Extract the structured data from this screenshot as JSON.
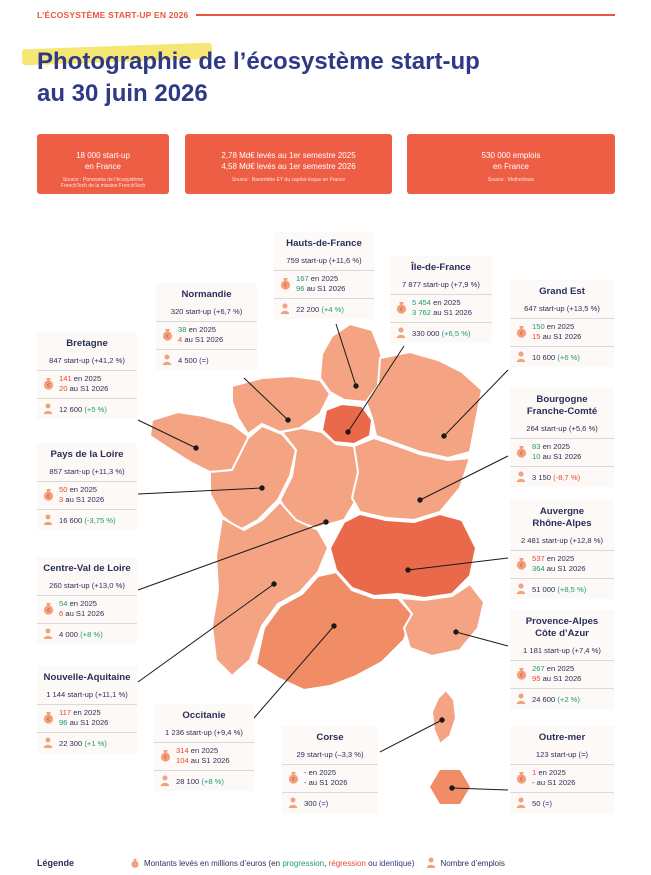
{
  "header": {
    "label": "L’ÉCOSYSTÈME START-UP EN 2026"
  },
  "title": {
    "highlighted": "Photographie",
    "rest": " de l’écosystème start-up",
    "line2": "au 30 juin 2026"
  },
  "kpis": [
    {
      "main": "18 000 start-up\nen France",
      "source": "Source : Panorama de l’écosystème\nFrenchTech de la mission FrenchTech"
    },
    {
      "main": "2,78 Md€ levés au 1er semestre 2025\n4,58 Md€ levés au 1er semestre 2026",
      "source": "Source : Baromètre EY du capital-risque en France"
    },
    {
      "main": "530 000 emplois\nen France",
      "source": "Source : Motherbase"
    }
  ],
  "regions": [
    {
      "id": "hauts-de-france",
      "name": "Hauts-de-France",
      "summary": "759 start-up (+11,6 %)",
      "v2025": "167",
      "v2025_tone": "green",
      "suffix2025": " en 2025",
      "v2026": "96",
      "v2026_tone": "green",
      "suffix2026": " au S1 2026",
      "jobs": "22 200",
      "jobs_change": "(+4 %)",
      "jobs_tone": "green"
    },
    {
      "id": "ile-de-france",
      "name": "Île-de-France",
      "summary": "7 877 start-up (+7,9 %)",
      "v2025": "5 454",
      "v2025_tone": "green",
      "suffix2025": " en 2025",
      "v2026": "3 762",
      "v2026_tone": "green",
      "suffix2026": " au S1 2026",
      "jobs": "330 000",
      "jobs_change": "(+6,5 %)",
      "jobs_tone": "green"
    },
    {
      "id": "normandie",
      "name": "Normandie",
      "summary": "320 start-up (+6,7 %)",
      "v2025": "38",
      "v2025_tone": "green",
      "suffix2025": " en 2025",
      "v2026": "4",
      "v2026_tone": "red",
      "suffix2026": " au S1 2026",
      "jobs": "4 500",
      "jobs_change": "(=)",
      "jobs_tone": "blue"
    },
    {
      "id": "grand-est",
      "name": "Grand Est",
      "summary": "647 start-up (+13,5 %)",
      "v2025": "150",
      "v2025_tone": "green",
      "suffix2025": " en 2025",
      "v2026": "15",
      "v2026_tone": "red",
      "suffix2026": " au S1 2026",
      "jobs": "10 600",
      "jobs_change": "(+6 %)",
      "jobs_tone": "green"
    },
    {
      "id": "bretagne",
      "name": "Bretagne",
      "summary": "847 start-up (+41,2 %)",
      "v2025": "141",
      "v2025_tone": "red",
      "suffix2025": " en 2025",
      "v2026": "20",
      "v2026_tone": "red",
      "suffix2026": " au S1 2026",
      "jobs": "12 600",
      "jobs_change": "(+5 %)",
      "jobs_tone": "green"
    },
    {
      "id": "bourgogne",
      "name": "Bourgogne\nFranche-Comté",
      "summary": "264 start-up (+5,6 %)",
      "v2025": "83",
      "v2025_tone": "green",
      "suffix2025": " en 2025",
      "v2026": "10",
      "v2026_tone": "green",
      "suffix2026": " au S1 2026",
      "jobs": "3 150",
      "jobs_change": "(-8,7 %)",
      "jobs_tone": "red"
    },
    {
      "id": "pays-de-la-loire",
      "name": "Pays de la Loire",
      "summary": "857 start-up (+11,3 %)",
      "v2025": "50",
      "v2025_tone": "red",
      "suffix2025": " en 2025",
      "v2026": "3",
      "v2026_tone": "red",
      "suffix2026": " au S1 2026",
      "jobs": "16 600",
      "jobs_change": "(-3,75 %)",
      "jobs_tone": "green"
    },
    {
      "id": "auvergne",
      "name": "Auvergne\nRhône-Alpes",
      "summary": "2 481 start-up (+12,8 %)",
      "v2025": "537",
      "v2025_tone": "red",
      "suffix2025": " en 2025",
      "v2026": "364",
      "v2026_tone": "green",
      "suffix2026": " au S1 2026",
      "jobs": "51 000",
      "jobs_change": "(+8,5 %)",
      "jobs_tone": "green"
    },
    {
      "id": "centre-val-de-loire",
      "name": "Centre-Val de Loire",
      "summary": "260 start-up (+13,0 %)",
      "v2025": "54",
      "v2025_tone": "green",
      "suffix2025": " en 2025",
      "v2026": "6",
      "v2026_tone": "red",
      "suffix2026": " au S1 2026",
      "jobs": "4 000",
      "jobs_change": "(+8 %)",
      "jobs_tone": "green"
    },
    {
      "id": "paca",
      "name": "Provence-Alpes\nCôte d’Azur",
      "summary": "1 181 start-up (+7,4 %)",
      "v2025": "267",
      "v2025_tone": "green",
      "suffix2025": " en 2025",
      "v2026": "95",
      "v2026_tone": "red",
      "suffix2026": " au S1 2026",
      "jobs": "24 600",
      "jobs_change": "(+2 %)",
      "jobs_tone": "green"
    },
    {
      "id": "nouvelle-aquitaine",
      "name": "Nouvelle-Aquitaine",
      "summary": "1 144 start-up (+11,1 %)",
      "v2025": "117",
      "v2025_tone": "red",
      "suffix2025": " en 2025",
      "v2026": "96",
      "v2026_tone": "green",
      "suffix2026": " au S1 2026",
      "jobs": "22 300",
      "jobs_change": "(+1 %)",
      "jobs_tone": "green"
    },
    {
      "id": "occitanie",
      "name": "Occitanie",
      "summary": "1 236 start-up (+9,4 %)",
      "v2025": "314",
      "v2025_tone": "red",
      "suffix2025": " en 2025",
      "v2026": "104",
      "v2026_tone": "red",
      "suffix2026": " au S1 2026",
      "jobs": "28 100",
      "jobs_change": "(+8 %)",
      "jobs_tone": "green"
    },
    {
      "id": "corse",
      "name": "Corse",
      "summary": "29 start-up (–3,3 %)",
      "v2025": "-",
      "v2025_tone": "blue",
      "suffix2025": " en 2025",
      "v2026": "-",
      "v2026_tone": "blue",
      "suffix2026": " au S1 2026",
      "jobs": "300",
      "jobs_change": "(=)",
      "jobs_tone": "blue"
    },
    {
      "id": "outre-mer",
      "name": "Outre-mer",
      "summary": "123 start-up (=)",
      "v2025": "1",
      "v2025_tone": "red",
      "suffix2025": " en 2025",
      "v2026": "-",
      "v2026_tone": "blue",
      "suffix2026": " au S1 2026",
      "jobs": "50",
      "jobs_change": "(=)",
      "jobs_tone": "blue"
    }
  ],
  "legend": {
    "title": "Légende",
    "funds_prefix": "Montants levés en millions d’euros (en ",
    "progression": "progression",
    "sep1": ", ",
    "regression": "régression",
    "sep2": " ou ",
    "identique": "identique",
    "funds_suffix": ")",
    "jobs": "Nombre d’emplois"
  },
  "colors": {
    "accent": "#ee5e44",
    "navy": "#2e3a87",
    "green": "#1f9a74",
    "red": "#e44a2f",
    "idf": "#e8573a",
    "light": "#f5a483",
    "medium": "#f08d67",
    "dark": "#e9694a"
  },
  "icons": {
    "funds": "money-bag-icon",
    "jobs": "person-icon"
  }
}
